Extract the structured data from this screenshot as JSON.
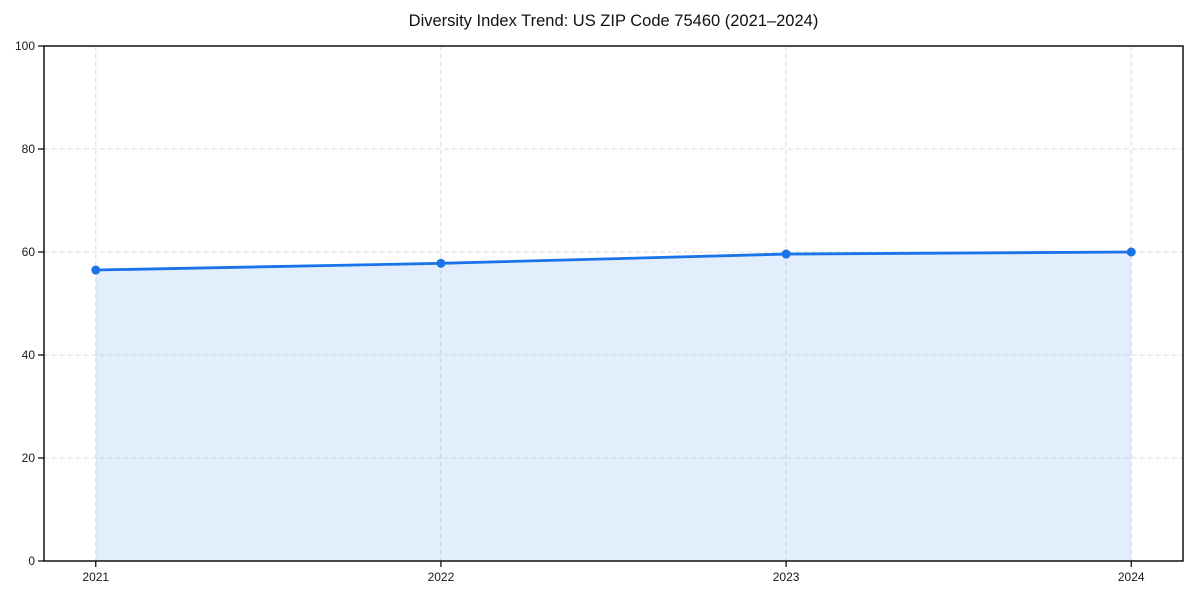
{
  "figure": {
    "background": "#ffffff"
  },
  "chart_data": {
    "type": "area",
    "title": "Diversity Index Trend: US ZIP Code 75460 (2021–2024)",
    "categories": [
      "2021",
      "2022",
      "2023",
      "2024"
    ],
    "series": [
      {
        "name": "Diversity Index",
        "values": [
          56.5,
          57.8,
          59.6,
          60.0
        ]
      }
    ],
    "xlabel": "",
    "ylabel": "",
    "ylim": [
      0,
      100
    ],
    "yticks": [
      0,
      20,
      40,
      60,
      80,
      100
    ],
    "grid": true,
    "grid_style": "dashed",
    "legend_position": "none",
    "line_color": "#1a73e8",
    "marker_color": "#1a73e8",
    "fill_color": "rgba(26,115,232,0.12)",
    "grid_color": "#dedede",
    "spine_color": "#000000",
    "tick_label_color": "#1a1a1a",
    "title_color": "#111111"
  }
}
